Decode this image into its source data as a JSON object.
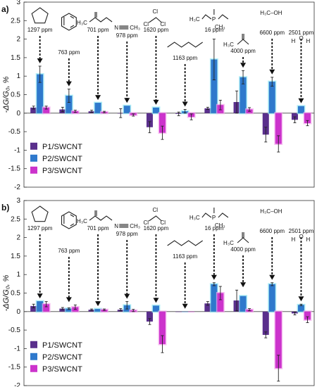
{
  "panel_labels": [
    "a)",
    "b)"
  ],
  "molecule_labels": {
    "acetate_top": "H₃C",
    "acetonitrile": "CH₃",
    "ch2cl2": "Cl",
    "dmmp_h3c": "H₃C",
    "dmmp_p": "P",
    "dmmp_ch3": "CH₃",
    "acetone": "H₃C",
    "methanol": "H₃C–OH",
    "water_h": "H",
    "water_o": "O"
  },
  "colors": {
    "P1/SWCNT": "#5a2f8c",
    "P2/SWCNT": "#2f79cc",
    "P3/SWCNT": "#cc33cc",
    "p2_glow": "#8fe6f2",
    "p3_glow": "#f4a6ec"
  },
  "chart_data": [
    {
      "type": "bar",
      "panel": "a)",
      "ylabel": "-ΔG/G₀, %",
      "ylim": [
        -2,
        3
      ],
      "yticks": [
        "3",
        "2.5",
        "2",
        "1.5",
        "1",
        "0.5",
        "0",
        "-0.5",
        "-1",
        "-1.5",
        "-2"
      ],
      "legend_position": "bottom-left",
      "categories": [
        "1297 ppm",
        "763 ppm",
        "701 ppm",
        "978 ppm",
        "1620 ppm",
        "1163 ppm",
        "16 ppm",
        "4000 ppm",
        "6600 ppm",
        "2501 ppm"
      ],
      "analytes": [
        "THF",
        "benzene",
        "ethyl acetate",
        "acetonitrile",
        "dichloromethane",
        "hexane",
        "DMMP",
        "acetone",
        "methanol",
        "water"
      ],
      "series": [
        {
          "name": "P1/SWCNT",
          "values": [
            0.15,
            0.1,
            0.05,
            0.0,
            -0.38,
            -0.02,
            0.13,
            0.3,
            -0.58,
            -0.18
          ],
          "errors": [
            0.04,
            0.06,
            0.03,
            0.12,
            0.15,
            0.05,
            0.03,
            0.3,
            0.2,
            0.08
          ]
        },
        {
          "name": "P2/SWCNT",
          "values": [
            1.05,
            0.47,
            0.28,
            0.2,
            0.15,
            0.05,
            1.45,
            0.97,
            0.85,
            0.19
          ],
          "errors": [
            0.22,
            0.18,
            0.0,
            0.0,
            0.0,
            0.05,
            0.55,
            0.18,
            0.12,
            0.0
          ]
        },
        {
          "name": "P3/SWCNT",
          "values": [
            0.15,
            0.05,
            0.03,
            -0.05,
            -0.53,
            -0.1,
            0.22,
            0.1,
            -0.83,
            -0.27
          ],
          "errors": [
            0.04,
            0.03,
            0.02,
            0.03,
            0.18,
            0.08,
            0.13,
            0.05,
            0.22,
            0.07
          ]
        }
      ]
    },
    {
      "type": "bar",
      "panel": "b)",
      "ylabel": "-ΔG/G₀, %",
      "ylim": [
        -2,
        3
      ],
      "yticks": [
        "3",
        "2.5",
        "2",
        "1.5",
        "1",
        "0.5",
        "0",
        "-0.5",
        "-1",
        "-1.5",
        "-2"
      ],
      "legend_position": "bottom-left",
      "categories": [
        "1297 ppm",
        "763 ppm",
        "701 ppm",
        "978 ppm",
        "1620 ppm",
        "1163 ppm",
        "16 ppm",
        "4000 ppm",
        "6600 ppm",
        "2501 ppm"
      ],
      "analytes": [
        "THF",
        "benzene",
        "ethyl acetate",
        "acetonitrile",
        "dichloromethane",
        "hexane",
        "DMMP",
        "acetone",
        "methanol",
        "water"
      ],
      "series": [
        {
          "name": "P1/SWCNT",
          "values": [
            0.15,
            0.08,
            0.05,
            0.05,
            -0.27,
            0.0,
            0.22,
            0.3,
            -0.63,
            -0.05
          ],
          "errors": [
            0.05,
            0.03,
            0.02,
            0.03,
            0.08,
            0.0,
            0.05,
            0.28,
            0.08,
            0.04
          ]
        },
        {
          "name": "P2/SWCNT",
          "values": [
            0.28,
            0.08,
            0.07,
            0.17,
            0.16,
            0.0,
            0.74,
            0.42,
            0.74,
            0.18
          ],
          "errors": [
            0.0,
            0.02,
            0.0,
            0.1,
            0.0,
            0.0,
            0.04,
            0.0,
            0.04,
            0.02
          ]
        },
        {
          "name": "P3/SWCNT",
          "values": [
            0.2,
            0.12,
            0.05,
            0.03,
            -0.88,
            0.0,
            0.5,
            0.05,
            -1.53,
            -0.22
          ],
          "errors": [
            0.07,
            0.06,
            0.02,
            0.03,
            0.23,
            0.0,
            0.18,
            0.03,
            0.35,
            0.08
          ]
        }
      ]
    }
  ]
}
